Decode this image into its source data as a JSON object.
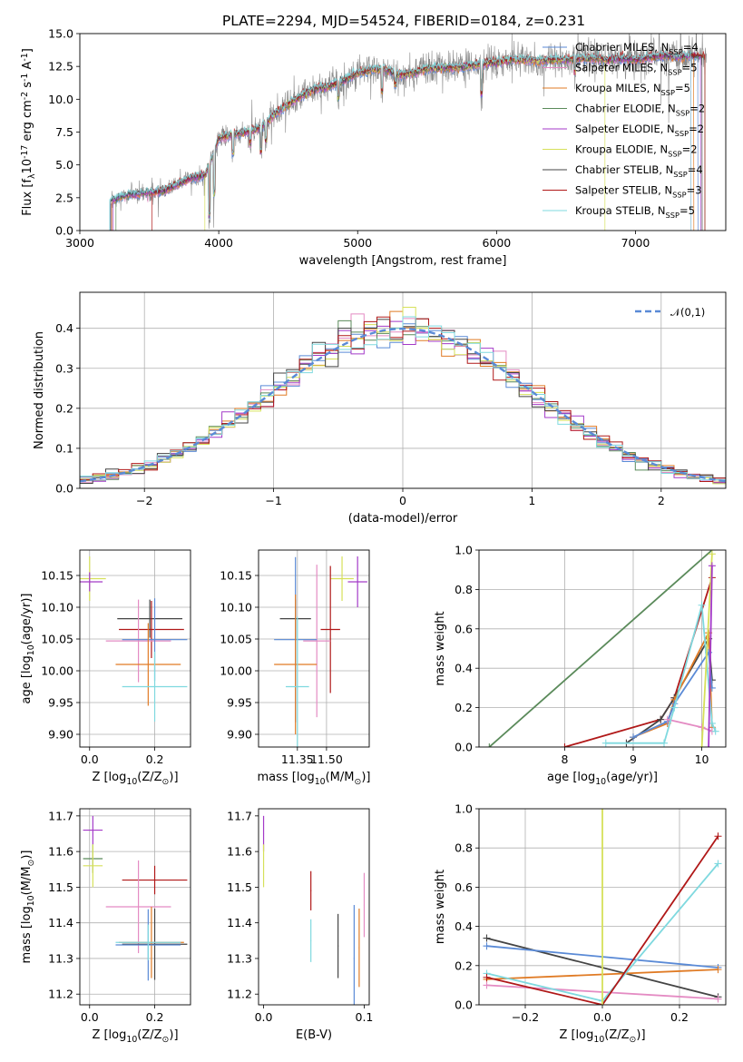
{
  "chart_data": [
    {
      "id": "spectrum",
      "type": "line",
      "title": "PLATE=2294, MJD=54524, FIBERID=0184, z=0.231",
      "xlabel": "wavelength [Angstrom, rest frame]",
      "ylabel": "Flux [f$_\\lambda$10$^{-17}$ erg cm$^{-2}$ s$^{-1}$ A$^{-1}$]",
      "xlim": [
        3000,
        7650
      ],
      "ylim": [
        0,
        15
      ],
      "xticks": [
        "3000",
        "4000",
        "5000",
        "6000",
        "7000"
      ],
      "yticks": [
        "0.0",
        "2.5",
        "5.0",
        "7.5",
        "10.0",
        "12.5",
        "15.0"
      ],
      "grid": false,
      "legend_position": "top-right",
      "spectrum_envelope": {
        "x": [
          3220,
          3300,
          3400,
          3500,
          3600,
          3700,
          3800,
          3900,
          3950,
          4000,
          4100,
          4200,
          4300,
          4400,
          4500,
          4600,
          4700,
          4800,
          4900,
          5000,
          5100,
          5200,
          5300,
          5400,
          5500,
          5600,
          5700,
          5800,
          5900,
          6000,
          6100,
          6200,
          6300,
          6400,
          6500,
          6600,
          6700,
          6800,
          6900,
          7000,
          7100,
          7200,
          7300,
          7400,
          7500
        ],
        "y": [
          2.2,
          2.6,
          2.8,
          2.9,
          3.0,
          3.5,
          4.0,
          4.2,
          5.5,
          7.0,
          7.3,
          7.5,
          7.8,
          8.8,
          9.6,
          10.3,
          10.8,
          11.0,
          11.4,
          12.0,
          12.2,
          12.3,
          11.8,
          12.0,
          12.3,
          12.4,
          12.4,
          12.5,
          12.7,
          12.8,
          13.0,
          13.0,
          12.9,
          13.0,
          13.0,
          13.1,
          13.1,
          13.0,
          13.1,
          13.0,
          13.2,
          13.3,
          13.2,
          13.3,
          13.2
        ]
      },
      "series": [
        {
          "name": "Chabrier MILES, N$_{SSP}$=4",
          "color": "#5a8ad6"
        },
        {
          "name": "Salpeter MILES, N$_{SSP}$=5",
          "color": "#e48bc3"
        },
        {
          "name": "Kroupa MILES, N$_{SSP}$=5",
          "color": "#e07b25"
        },
        {
          "name": "Chabrier ELODIE, N$_{SSP}$=2",
          "color": "#5a8a5a"
        },
        {
          "name": "Salpeter ELODIE, N$_{SSP}$=2",
          "color": "#a43ac8"
        },
        {
          "name": "Kroupa ELODIE, N$_{SSP}$=2",
          "color": "#d6e05a"
        },
        {
          "name": "Chabrier STELIB, N$_{SSP}$=4",
          "color": "#444444"
        },
        {
          "name": "Salpeter STELIB, N$_{SSP}$=3",
          "color": "#b01818"
        },
        {
          "name": "Kroupa STELIB, N$_{SSP}$=5",
          "color": "#7fd9df"
        }
      ]
    },
    {
      "id": "residuals",
      "type": "histogram",
      "xlabel": "(data-model)/error",
      "ylabel": "Normed distribution",
      "xlim": [
        -2.5,
        2.5
      ],
      "ylim": [
        0,
        0.49
      ],
      "xticks": [
        "−2",
        "−1",
        "0",
        "1",
        "2"
      ],
      "yticks": [
        "0.0",
        "0.1",
        "0.2",
        "0.3",
        "0.4"
      ],
      "grid": true,
      "legend_position": "top-right",
      "legend": "$\\mathcal{N}(0,1)$",
      "reference_curve": {
        "type": "normal",
        "mean": 0,
        "sigma": 1,
        "color": "#5a8ad6"
      },
      "bin_width": 0.1,
      "colors": [
        "#5a8ad6",
        "#e48bc3",
        "#e07b25",
        "#5a8a5a",
        "#a43ac8",
        "#d6e05a",
        "#444444",
        "#b01818",
        "#7fd9df"
      ]
    },
    {
      "id": "age-vs-Z",
      "type": "scatter",
      "xlabel": "Z [log$_{10}$($Z/Z_\\odot$)]",
      "ylabel": "age  [log$_{10}$($age/yr$)]",
      "xlim": [
        -0.03,
        0.31
      ],
      "ylim": [
        9.88,
        10.19
      ],
      "xticks": [
        "0.0",
        "0.2"
      ],
      "yticks": [
        "9.90",
        "9.95",
        "10.00",
        "10.05",
        "10.10",
        "10.15"
      ],
      "grid": true,
      "points": [
        {
          "x": 0.0,
          "y": 10.145,
          "xerr": 0.05,
          "yerr": 0.035,
          "color": "#d6e05a"
        },
        {
          "x": 0.0,
          "y": 10.14,
          "xerr": 0.04,
          "yerr": 0.015,
          "color": "#a43ac8"
        },
        {
          "x": 0.185,
          "y": 10.082,
          "xerr": 0.1,
          "yerr": 0.03,
          "color": "#444444"
        },
        {
          "x": 0.19,
          "y": 10.065,
          "xerr": 0.1,
          "yerr": 0.045,
          "color": "#b01818"
        },
        {
          "x": 0.15,
          "y": 10.047,
          "xerr": 0.1,
          "yerr": 0.065,
          "color": "#e48bc3"
        },
        {
          "x": 0.2,
          "y": 10.049,
          "xerr": 0.1,
          "yerr": 0.065,
          "color": "#5a8ad6"
        },
        {
          "x": 0.18,
          "y": 10.01,
          "xerr": 0.1,
          "yerr": 0.065,
          "color": "#e07b25"
        },
        {
          "x": 0.2,
          "y": 9.975,
          "xerr": 0.1,
          "yerr": 0.055,
          "color": "#7fd9df"
        }
      ]
    },
    {
      "id": "age-vs-mass",
      "type": "scatter",
      "xlabel": "mass [log$_{10}$($M/M_\\odot$)]",
      "ylabel": "",
      "xlim": [
        11.15,
        11.72
      ],
      "ylim": [
        9.88,
        10.19
      ],
      "xticks": [
        "11.35",
        "11.50"
      ],
      "yticks": [
        "9.90",
        "9.95",
        "10.00",
        "10.05",
        "10.10",
        "10.15"
      ],
      "grid": true,
      "points": [
        {
          "x": 11.58,
          "y": 10.145,
          "xerr": 0.06,
          "yerr": 0.035,
          "color": "#d6e05a"
        },
        {
          "x": 11.66,
          "y": 10.14,
          "xerr": 0.05,
          "yerr": 0.04,
          "color": "#a43ac8"
        },
        {
          "x": 11.34,
          "y": 10.082,
          "xerr": 0.08,
          "yerr": 0.03,
          "color": "#444444"
        },
        {
          "x": 11.52,
          "y": 10.065,
          "xerr": 0.05,
          "yerr": 0.1,
          "color": "#b01818"
        },
        {
          "x": 11.45,
          "y": 10.047,
          "xerr": 0.07,
          "yerr": 0.12,
          "color": "#e48bc3"
        },
        {
          "x": 11.34,
          "y": 10.049,
          "xerr": 0.11,
          "yerr": 0.13,
          "color": "#5a8ad6"
        },
        {
          "x": 11.34,
          "y": 10.01,
          "xerr": 0.11,
          "yerr": 0.11,
          "color": "#e07b25"
        },
        {
          "x": 11.35,
          "y": 9.975,
          "xerr": 0.06,
          "yerr": 0.11,
          "color": "#7fd9df"
        }
      ]
    },
    {
      "id": "weight-vs-age",
      "type": "line",
      "xlabel": "age  [log$_{10}$($age/yr$)]",
      "ylabel": "mass weight",
      "xlim": [
        6.75,
        10.35
      ],
      "ylim": [
        0,
        1
      ],
      "xticks": [
        "8",
        "9",
        "10"
      ],
      "yticks": [
        "0.0",
        "0.2",
        "0.4",
        "0.6",
        "0.8",
        "1.0"
      ],
      "grid": true,
      "series": [
        {
          "color": "#5a8a5a",
          "x": [
            6.9,
            10.15
          ],
          "y": [
            0.0,
            1.0
          ]
        },
        {
          "color": "#b01818",
          "x": [
            8.0,
            9.4,
            9.6,
            10.15
          ],
          "y": [
            0.0,
            0.14,
            0.25,
            0.86
          ]
        },
        {
          "color": "#444444",
          "x": [
            8.9,
            9.4,
            9.6,
            10.1,
            10.15
          ],
          "y": [
            0.02,
            0.14,
            0.25,
            0.55,
            0.34
          ]
        },
        {
          "color": "#e07b25",
          "x": [
            9.0,
            9.5,
            9.6,
            10.1,
            10.15
          ],
          "y": [
            0.05,
            0.12,
            0.24,
            0.58,
            0.1
          ]
        },
        {
          "color": "#5a8ad6",
          "x": [
            9.0,
            9.5,
            9.6,
            10.1,
            10.15
          ],
          "y": [
            0.05,
            0.13,
            0.22,
            0.48,
            0.3
          ]
        },
        {
          "color": "#e48bc3",
          "x": [
            9.5,
            10.0,
            10.15
          ],
          "y": [
            0.14,
            0.1,
            0.08
          ]
        },
        {
          "color": "#7fd9df",
          "x": [
            8.6,
            9.45,
            9.6,
            10.0,
            10.15,
            10.2
          ],
          "y": [
            0.02,
            0.02,
            0.2,
            0.72,
            0.12,
            0.08
          ]
        },
        {
          "color": "#d6e05a",
          "x": [
            10.0,
            10.15
          ],
          "y": [
            0.0,
            0.98
          ]
        },
        {
          "color": "#a43ac8",
          "x": [
            10.1,
            10.15
          ],
          "y": [
            0.0,
            0.92
          ]
        }
      ]
    },
    {
      "id": "mass-vs-Z",
      "type": "scatter",
      "xlabel": "Z [log$_{10}$($Z/Z_\\odot$)]",
      "ylabel": "mass [log$_{10}$($M/M_\\odot$)]",
      "xlim": [
        -0.03,
        0.31
      ],
      "ylim": [
        11.17,
        11.72
      ],
      "xticks": [
        "0.0",
        "0.2"
      ],
      "yticks": [
        "11.2",
        "11.3",
        "11.4",
        "11.5",
        "11.6",
        "11.7"
      ],
      "grid": true,
      "points": [
        {
          "x": 0.01,
          "y": 11.66,
          "xerr": 0.03,
          "yerr": 0.04,
          "color": "#a43ac8"
        },
        {
          "x": 0.01,
          "y": 11.58,
          "xerr": 0.03,
          "yerr": 0.04,
          "color": "#5a8a5a"
        },
        {
          "x": 0.01,
          "y": 11.56,
          "xerr": 0.03,
          "yerr": 0.06,
          "color": "#d6e05a"
        },
        {
          "x": 0.2,
          "y": 11.52,
          "xerr": 0.1,
          "yerr": 0.04,
          "color": "#b01818"
        },
        {
          "x": 0.15,
          "y": 11.445,
          "xerr": 0.1,
          "yerr": 0.13,
          "color": "#e48bc3"
        },
        {
          "x": 0.2,
          "y": 11.34,
          "xerr": 0.1,
          "yerr": 0.1,
          "color": "#444444"
        },
        {
          "x": 0.19,
          "y": 11.345,
          "xerr": 0.1,
          "yerr": 0.1,
          "color": "#e07b25"
        },
        {
          "x": 0.18,
          "y": 11.338,
          "xerr": 0.1,
          "yerr": 0.1,
          "color": "#5a8ad6"
        },
        {
          "x": 0.18,
          "y": 11.345,
          "xerr": 0.1,
          "yerr": 0.05,
          "color": "#7fd9df"
        }
      ]
    },
    {
      "id": "mass-vs-EBV",
      "type": "scatter",
      "xlabel": "E(B-V)",
      "ylabel": "",
      "xlim": [
        -0.005,
        0.105
      ],
      "ylim": [
        11.17,
        11.72
      ],
      "xticks": [
        "0.0",
        "0.1"
      ],
      "yticks": [
        "11.2",
        "11.3",
        "11.4",
        "11.5",
        "11.6",
        "11.7"
      ],
      "grid": false,
      "points": [
        {
          "x": 0.0,
          "y": 11.65,
          "yerr": 0.05,
          "color": "#a43ac8"
        },
        {
          "x": 0.0,
          "y": 11.56,
          "yerr": 0.06,
          "color": "#d6e05a"
        },
        {
          "x": 0.047,
          "y": 11.49,
          "yerr": 0.055,
          "color": "#b01818"
        },
        {
          "x": 0.047,
          "y": 11.35,
          "yerr": 0.06,
          "color": "#7fd9df"
        },
        {
          "x": 0.074,
          "y": 11.335,
          "yerr": 0.09,
          "color": "#444444"
        },
        {
          "x": 0.09,
          "y": 11.3,
          "yerr": 0.15,
          "color": "#5a8ad6"
        },
        {
          "x": 0.095,
          "y": 11.33,
          "yerr": 0.11,
          "color": "#e07b25"
        },
        {
          "x": 0.1,
          "y": 11.45,
          "yerr": 0.09,
          "color": "#e48bc3"
        }
      ]
    },
    {
      "id": "weight-vs-Z",
      "type": "line",
      "xlabel": "Z [log$_{10}$($Z/Z_\\odot$)]",
      "ylabel": "mass weight",
      "xlim": [
        -0.32,
        0.32
      ],
      "ylim": [
        0,
        1
      ],
      "xticks": [
        "−0.2",
        "0.0",
        "0.2"
      ],
      "yticks": [
        "0.0",
        "0.2",
        "0.4",
        "0.6",
        "0.8",
        "1.0"
      ],
      "grid": true,
      "series": [
        {
          "color": "#444444",
          "x": [
            -0.3,
            0.3
          ],
          "y": [
            0.34,
            0.04
          ]
        },
        {
          "color": "#5a8ad6",
          "x": [
            -0.3,
            0.3
          ],
          "y": [
            0.3,
            0.19
          ]
        },
        {
          "color": "#e07b25",
          "x": [
            -0.3,
            0.3
          ],
          "y": [
            0.13,
            0.18
          ]
        },
        {
          "color": "#e48bc3",
          "x": [
            -0.3,
            0.3
          ],
          "y": [
            0.1,
            0.03
          ]
        },
        {
          "color": "#7fd9df",
          "x": [
            -0.3,
            0.0,
            0.3
          ],
          "y": [
            0.16,
            0.02,
            0.72
          ]
        },
        {
          "color": "#b01818",
          "x": [
            -0.3,
            0.0,
            0.3
          ],
          "y": [
            0.14,
            0.0,
            0.86
          ]
        },
        {
          "color": "#d6e05a",
          "x": [
            0.0,
            0.0
          ],
          "y": [
            0.0,
            1.0
          ]
        }
      ]
    }
  ]
}
